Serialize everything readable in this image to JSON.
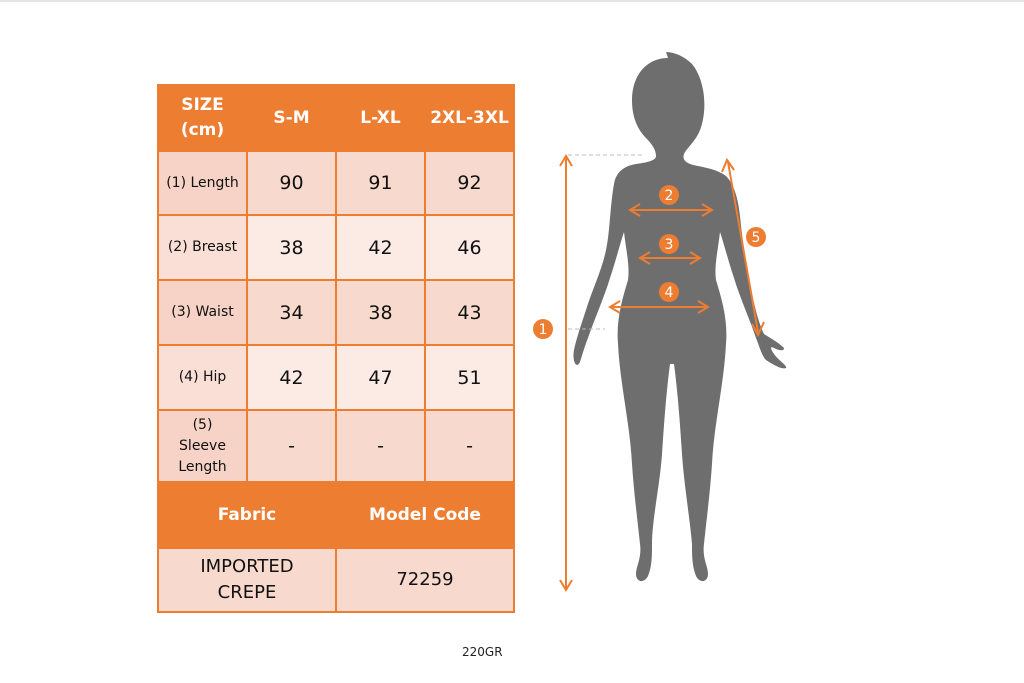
{
  "table": {
    "headers": [
      "SIZE (cm)",
      "S-M",
      "L-XL",
      "2XL-3XL"
    ],
    "rows": [
      {
        "label": "(1) Length",
        "values": [
          "90",
          "91",
          "92"
        ]
      },
      {
        "label": "(2) Breast",
        "values": [
          "38",
          "42",
          "46"
        ]
      },
      {
        "label": "(3) Waist",
        "values": [
          "34",
          "38",
          "43"
        ]
      },
      {
        "label": "(4) Hip",
        "values": [
          "42",
          "47",
          "51"
        ]
      },
      {
        "label": "(5) Sleeve Length",
        "values": [
          "-",
          "-",
          "-"
        ]
      }
    ],
    "fabric_label": "Fabric",
    "model_code_label": "Model Code",
    "fabric_value": "IMPORTED CREPE",
    "model_code_value": "72259"
  },
  "weight": "220GR",
  "figure": {
    "markers": [
      "1",
      "2",
      "3",
      "4",
      "5"
    ],
    "accent": "#ED7D31",
    "silhouette": "#6E6E6E"
  }
}
